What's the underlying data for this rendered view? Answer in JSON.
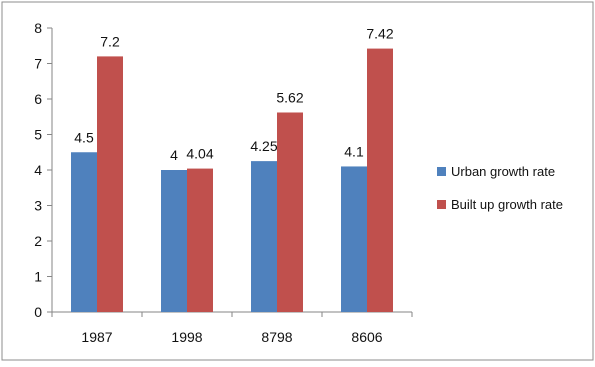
{
  "chart_data": {
    "type": "bar",
    "categories": [
      "1987",
      "1998",
      "8798",
      "8606"
    ],
    "series": [
      {
        "name": "Urban growth rate",
        "values": [
          4.5,
          4,
          4.25,
          4.1
        ],
        "color": "#4f81bd"
      },
      {
        "name": "Built up growth rate",
        "values": [
          7.2,
          4.04,
          5.62,
          7.42
        ],
        "color": "#c0504d"
      }
    ],
    "data_labels": [
      [
        "4.5",
        "4",
        "4.25",
        "4.1"
      ],
      [
        "7.2",
        "4.04",
        "5.62",
        "7.42"
      ]
    ],
    "yticks": [
      "0",
      "1",
      "2",
      "3",
      "4",
      "5",
      "6",
      "7",
      "8"
    ],
    "ylim": [
      0,
      8
    ],
    "title": "",
    "xlabel": "",
    "ylabel": "",
    "grid": false,
    "legend_position": "right"
  }
}
